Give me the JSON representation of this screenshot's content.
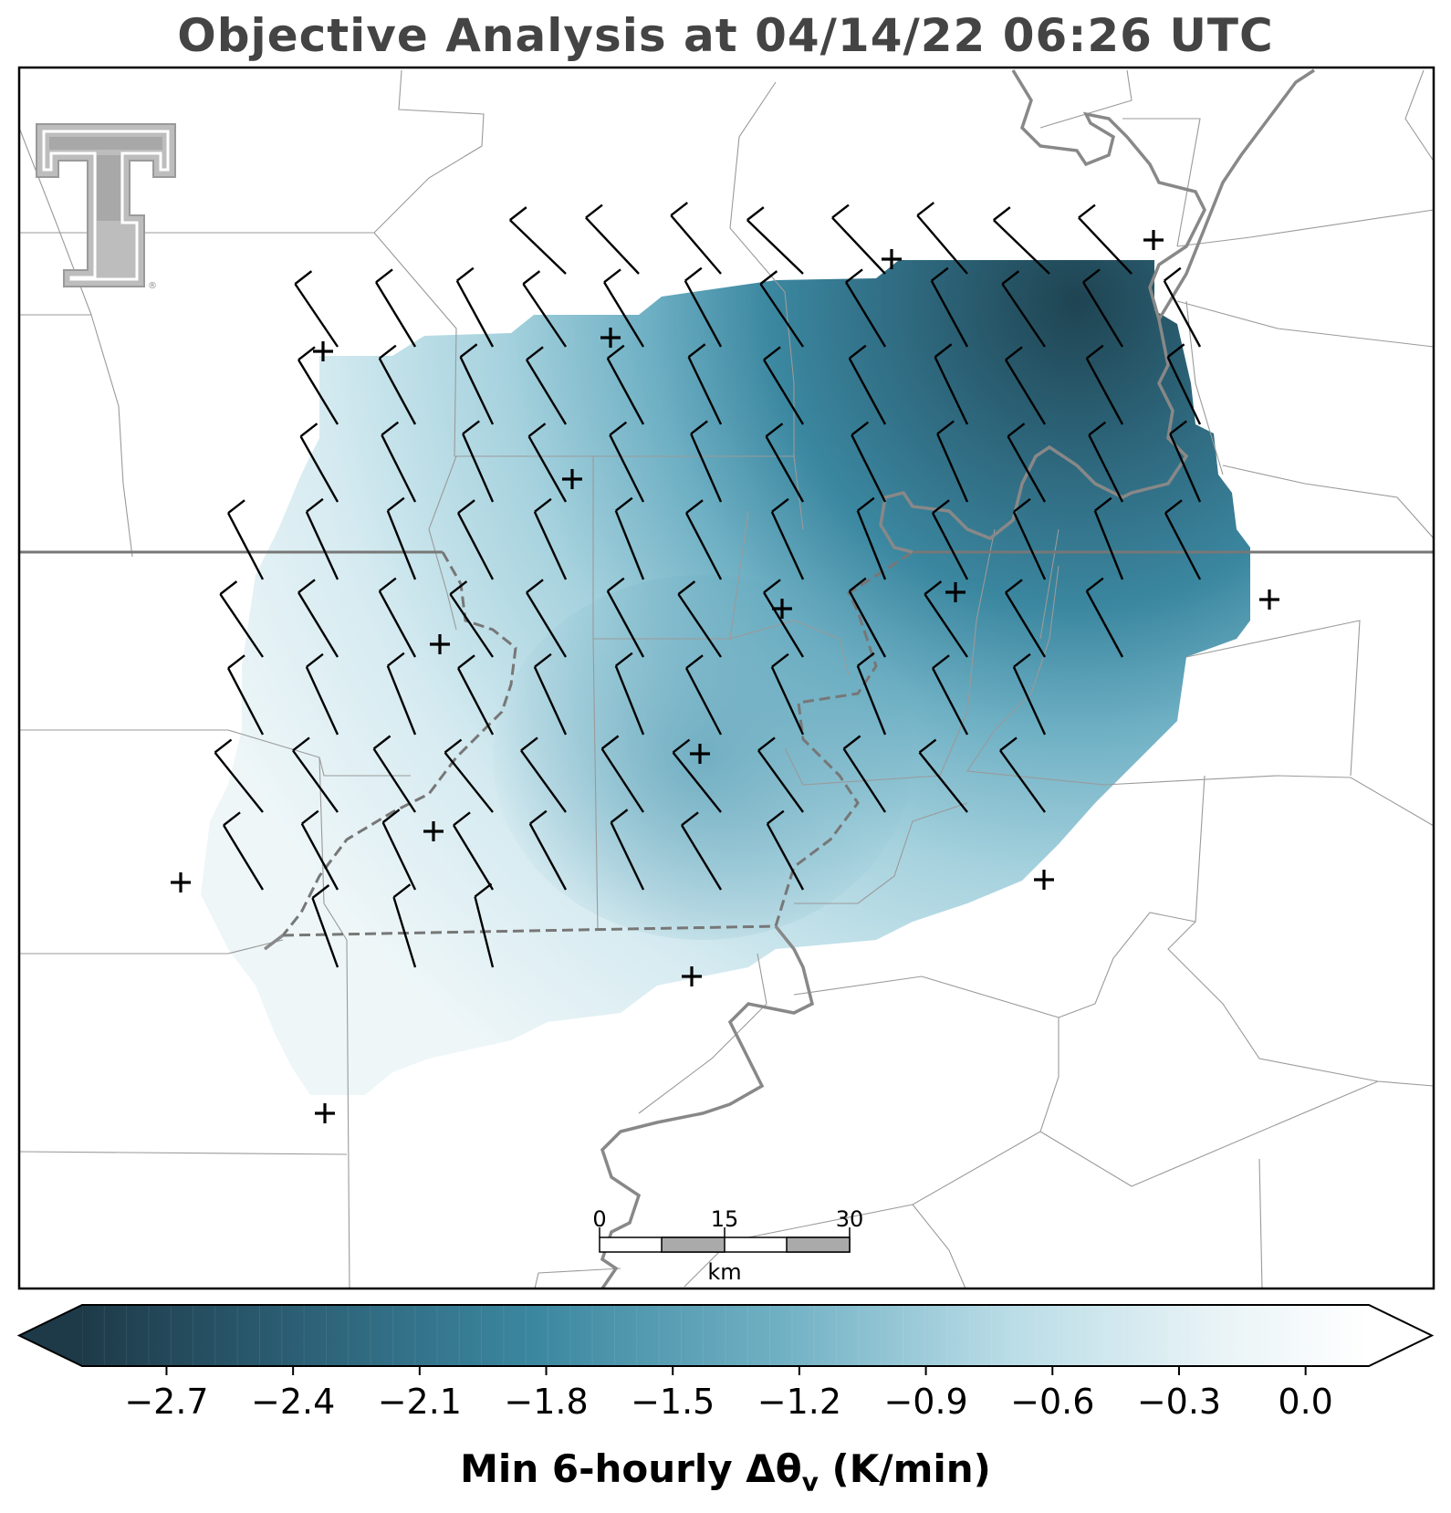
{
  "title": "Objective Analysis at 04/14/22 06:26 UTC",
  "colorbar": {
    "label_main": "Min 6-hourly Δθ",
    "label_sub": "v",
    "label_units": " (K/min)",
    "ticks": [
      "−2.7",
      "−2.4",
      "−2.1",
      "−1.8",
      "−1.5",
      "−1.2",
      "−0.9",
      "−0.6",
      "−0.3",
      "0.0"
    ],
    "range": [
      -2.9,
      0.15
    ],
    "color_stops": [
      "#1e3a48",
      "#2d6278",
      "#3b879f",
      "#73b2c5",
      "#b9dce6",
      "#e8f3f6",
      "#ffffff"
    ]
  },
  "scale_bar": {
    "ticks": [
      "0",
      "15",
      "30"
    ],
    "unit": "km"
  },
  "logo": {
    "name": "double-T-logo",
    "mark": "®"
  },
  "station_marker": "+",
  "colors": {
    "border": "#000000",
    "county_lines": "#9a9a9a",
    "state_line": "#777777",
    "river": "#888888",
    "barbs": "#000000"
  }
}
